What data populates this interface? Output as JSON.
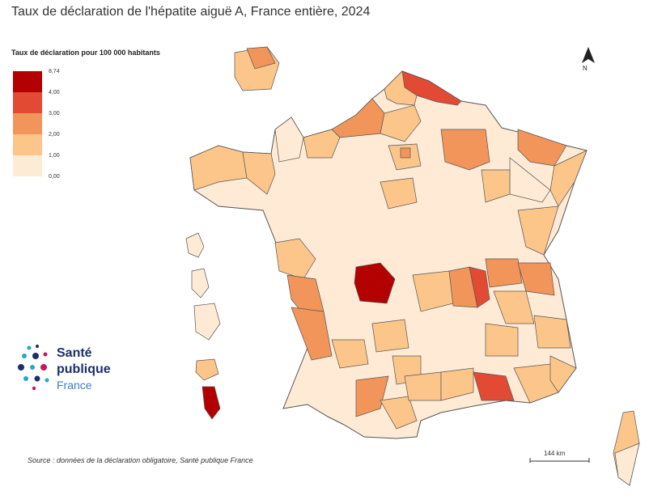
{
  "title": "Taux de déclaration de l'hépatite aiguë A, France entière, 2024",
  "legend": {
    "title": "Taux de déclaration pour 100 000 habitants",
    "labels": [
      "8,74",
      "4,00",
      "3,00",
      "2,00",
      "1,00",
      "0,00"
    ],
    "colors": [
      "#b30000",
      "#e34a33",
      "#f2955a",
      "#fcc68a",
      "#feead5"
    ]
  },
  "logo": {
    "line1": "Santé",
    "line2": "publique",
    "line3": "France",
    "colors": {
      "navy": "#1c2f6b",
      "blue": "#3d7fc1",
      "pink": "#c2185b",
      "teal": "#26a6c9"
    }
  },
  "source": "Source : données de la déclaration obligatoire, Santé publique France",
  "scale_label": "144 km",
  "north_label": "N",
  "colors": {
    "class_0_1": "#feead5",
    "class_1_2": "#fcc68a",
    "class_2_3": "#f2955a",
    "class_3_4": "#e34a33",
    "class_4_874": "#b30000",
    "border": "#555555"
  }
}
